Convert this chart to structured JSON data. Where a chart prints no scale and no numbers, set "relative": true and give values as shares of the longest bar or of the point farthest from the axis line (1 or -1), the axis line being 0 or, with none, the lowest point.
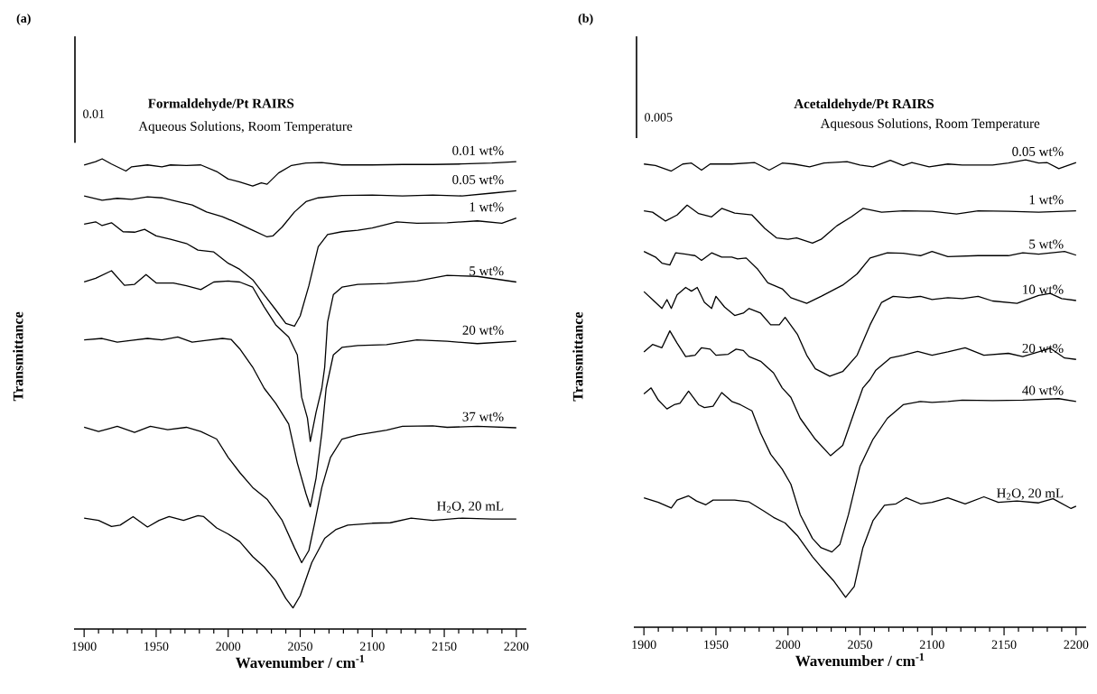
{
  "chart_data": [
    {
      "type": "line",
      "title": "Formaldehyde/Pt RAIRS",
      "subtitle": "Aqueous Solutions, Room Temperature",
      "xlabel": "**Wavenumber / cm$^{-1}$**",
      "ylabel": "Transmittance",
      "annotations": [
        "(a)",
        "0.01"
      ],
      "relative": true,
      "line_style": "solid",
      "xlim": [
        1893,
        2207
      ],
      "xticks": [
        1900,
        {
          "value": 1910,
          "label": null
        },
        {
          "value": 1920,
          "label": null
        },
        {
          "value": 1930,
          "label": null
        },
        {
          "value": 1940,
          "label": null
        },
        1950,
        {
          "value": 1960,
          "label": null
        },
        {
          "value": 1970,
          "label": null
        },
        {
          "value": 1980,
          "label": null
        },
        {
          "value": 1990,
          "label": null
        },
        2000,
        {
          "value": 2010,
          "label": null
        },
        {
          "value": 2020,
          "label": null
        },
        {
          "value": 2030,
          "label": null
        },
        {
          "value": 2040,
          "label": null
        },
        2050,
        {
          "value": 2060,
          "label": null
        },
        {
          "value": 2070,
          "label": null
        },
        {
          "value": 2080,
          "label": null
        },
        {
          "value": 2090,
          "label": null
        },
        2100,
        {
          "value": 2110,
          "label": null
        },
        {
          "value": 2120,
          "label": null
        },
        {
          "value": 2130,
          "label": null
        },
        {
          "value": 2140,
          "label": null
        },
        2150,
        {
          "value": 2160,
          "label": null
        },
        {
          "value": 2170,
          "label": null
        },
        {
          "value": 2180,
          "label": null
        },
        {
          "value": 2190,
          "label": null
        },
        2200
      ],
      "series": [
        {
          "name": "0.01 wt%",
          "color": "#000000",
          "x": [
            1900,
            1908,
            1912.5,
            1919,
            1929,
            1933,
            1944,
            1954,
            1960,
            1971,
            1981,
            1992,
            2000,
            2008,
            2017,
            2023,
            2027,
            2035,
            2044,
            2054,
            2065,
            2079,
            2100,
            2121,
            2142,
            2162,
            2183,
            2200
          ],
          "values": [
            0.987,
            0.994,
            1.0,
            0.989,
            0.974,
            0.983,
            0.987,
            0.983,
            0.987,
            0.986,
            0.987,
            0.973,
            0.957,
            0.951,
            0.942,
            0.949,
            0.946,
            0.97,
            0.986,
            0.991,
            0.992,
            0.987,
            0.987,
            0.988,
            0.988,
            0.989,
            0.991,
            0.994
          ]
        },
        {
          "name": "0.05 wt%",
          "color": "#000000",
          "x": [
            1900,
            1912.5,
            1923,
            1933,
            1944,
            1954,
            1965,
            1975,
            1985,
            1996,
            2006,
            2017,
            2027,
            2031,
            2037.5,
            2046,
            2054,
            2062.5,
            2079,
            2100,
            2121,
            2142,
            2162.5,
            2183,
            2200
          ],
          "values": [
            0.921,
            0.912,
            0.916,
            0.914,
            0.919,
            0.917,
            0.909,
            0.902,
            0.887,
            0.877,
            0.864,
            0.848,
            0.834,
            0.836,
            0.855,
            0.887,
            0.909,
            0.917,
            0.922,
            0.923,
            0.921,
            0.923,
            0.921,
            0.927,
            0.932
          ]
        },
        {
          "name": "1 wt%",
          "color": "#000000",
          "x": [
            1900,
            1908,
            1912.5,
            1919,
            1927,
            1935,
            1942,
            1950,
            1960,
            1971,
            1979,
            1990,
            2000,
            2008,
            2017,
            2025,
            2033,
            2040,
            2046,
            2050,
            2056,
            2062.5,
            2069,
            2079,
            2090,
            2100,
            2117,
            2131,
            2152,
            2173,
            2190,
            2200
          ],
          "values": [
            0.861,
            0.866,
            0.858,
            0.864,
            0.845,
            0.844,
            0.85,
            0.836,
            0.829,
            0.82,
            0.806,
            0.802,
            0.778,
            0.765,
            0.743,
            0.711,
            0.679,
            0.65,
            0.644,
            0.666,
            0.73,
            0.813,
            0.839,
            0.845,
            0.848,
            0.853,
            0.866,
            0.863,
            0.864,
            0.868,
            0.863,
            0.874
          ]
        },
        {
          "name": "5 wt%",
          "color": "#000000",
          "x": [
            1900,
            1908,
            1919,
            1928,
            1935,
            1943,
            1950,
            1962,
            1971,
            1981,
            1990,
            2000,
            2008,
            2017,
            2025,
            2033,
            2042,
            2048,
            2051,
            2055,
            2057,
            2061,
            2065,
            2067,
            2069,
            2073,
            2079,
            2090,
            2110,
            2131,
            2152,
            2173,
            2200
          ],
          "values": [
            0.738,
            0.746,
            0.762,
            0.731,
            0.733,
            0.754,
            0.736,
            0.736,
            0.73,
            0.722,
            0.738,
            0.74,
            0.738,
            0.727,
            0.685,
            0.647,
            0.621,
            0.583,
            0.493,
            0.449,
            0.399,
            0.461,
            0.512,
            0.557,
            0.653,
            0.711,
            0.727,
            0.733,
            0.735,
            0.74,
            0.752,
            0.75,
            0.738
          ]
        },
        {
          "name": "20 wt%",
          "color": "#000000",
          "x": [
            1900,
            1912.5,
            1923,
            1933,
            1944,
            1954,
            1965,
            1975,
            1985,
            1996,
            2002,
            2008,
            2017,
            2025,
            2033,
            2042,
            2048,
            2054,
            2057,
            2061,
            2065,
            2068,
            2073,
            2079,
            2090,
            2110,
            2131,
            2152,
            2173,
            2200
          ],
          "values": [
            0.615,
            0.618,
            0.61,
            0.614,
            0.618,
            0.615,
            0.621,
            0.61,
            0.614,
            0.618,
            0.616,
            0.596,
            0.557,
            0.512,
            0.48,
            0.436,
            0.353,
            0.288,
            0.26,
            0.321,
            0.417,
            0.512,
            0.583,
            0.599,
            0.603,
            0.605,
            0.615,
            0.612,
            0.607,
            0.612
          ]
        },
        {
          "name": "37 wt%",
          "color": "#000000",
          "x": [
            1900,
            1910,
            1917,
            1923,
            1935,
            1946,
            1958,
            1971,
            1981,
            1992,
            2000,
            2008,
            2017,
            2027,
            2037.5,
            2046,
            2051,
            2056,
            2060,
            2065,
            2071,
            2079,
            2090,
            2110,
            2121,
            2142,
            2152,
            2173,
            2200
          ],
          "values": [
            0.429,
            0.42,
            0.426,
            0.431,
            0.418,
            0.431,
            0.424,
            0.429,
            0.42,
            0.404,
            0.365,
            0.333,
            0.301,
            0.276,
            0.231,
            0.173,
            0.141,
            0.167,
            0.225,
            0.301,
            0.365,
            0.404,
            0.413,
            0.423,
            0.431,
            0.432,
            0.429,
            0.431,
            0.428
          ]
        },
        {
          "name": "H$_{2}$O, 20 mL",
          "color": "#000000",
          "x": [
            1900,
            1910,
            1919,
            1925,
            1934,
            1944,
            1952,
            1959,
            1969,
            1979,
            1983,
            1992,
            2000,
            2008,
            2017,
            2025,
            2033,
            2040,
            2045,
            2050,
            2058,
            2067,
            2075,
            2083,
            2100,
            2112.5,
            2127,
            2142,
            2162.5,
            2183,
            2200
          ],
          "values": [
            0.236,
            0.231,
            0.218,
            0.221,
            0.239,
            0.217,
            0.231,
            0.239,
            0.231,
            0.241,
            0.239,
            0.215,
            0.202,
            0.186,
            0.154,
            0.132,
            0.103,
            0.065,
            0.045,
            0.071,
            0.141,
            0.193,
            0.212,
            0.221,
            0.225,
            0.226,
            0.236,
            0.231,
            0.236,
            0.234,
            0.234
          ]
        }
      ]
    },
    {
      "type": "line",
      "title": "Acetaldehyde/Pt RAIRS",
      "subtitle": "Aquesous Solutions, Room Temperature",
      "xlabel": "**Wavenumber / cm$^{-1}$**",
      "ylabel": "Transmittance",
      "annotations": [
        "(b)",
        "0.005"
      ],
      "relative": true,
      "line_style": "solid",
      "xlim": [
        1893,
        2207
      ],
      "xticks": [
        1900,
        {
          "value": 1910,
          "label": null
        },
        {
          "value": 1920,
          "label": null
        },
        {
          "value": 1930,
          "label": null
        },
        {
          "value": 1940,
          "label": null
        },
        1950,
        {
          "value": 1960,
          "label": null
        },
        {
          "value": 1970,
          "label": null
        },
        {
          "value": 1980,
          "label": null
        },
        {
          "value": 1990,
          "label": null
        },
        2000,
        {
          "value": 2010,
          "label": null
        },
        {
          "value": 2020,
          "label": null
        },
        {
          "value": 2030,
          "label": null
        },
        {
          "value": 2040,
          "label": null
        },
        2050,
        {
          "value": 2060,
          "label": null
        },
        {
          "value": 2070,
          "label": null
        },
        {
          "value": 2080,
          "label": null
        },
        {
          "value": 2090,
          "label": null
        },
        2100,
        {
          "value": 2110,
          "label": null
        },
        {
          "value": 2120,
          "label": null
        },
        {
          "value": 2130,
          "label": null
        },
        {
          "value": 2140,
          "label": null
        },
        2150,
        {
          "value": 2160,
          "label": null
        },
        {
          "value": 2170,
          "label": null
        },
        {
          "value": 2180,
          "label": null
        },
        {
          "value": 2190,
          "label": null
        },
        2200
      ],
      "series": [
        {
          "name": "0.05 wt%",
          "color": "#000000",
          "x": [
            1900,
            1908,
            1919,
            1927,
            1933,
            1940,
            1946,
            1961,
            1977,
            1987,
            1996,
            2004,
            2015,
            2025,
            2041,
            2050,
            2059,
            2071,
            2080,
            2086,
            2098,
            2111,
            2121,
            2142,
            2153,
            2165,
            2174,
            2180,
            2188,
            2200
          ],
          "values": [
            0.991,
            0.988,
            0.976,
            0.991,
            0.993,
            0.978,
            0.991,
            0.991,
            0.994,
            0.978,
            0.993,
            0.991,
            0.985,
            0.993,
            0.996,
            0.989,
            0.985,
            0.999,
            0.988,
            0.994,
            0.985,
            0.991,
            0.989,
            0.989,
            0.993,
            1.0,
            0.993,
            0.994,
            0.981,
            0.994
          ]
        },
        {
          "name": "1 wt%",
          "color": "#000000",
          "x": [
            1900,
            1906,
            1915,
            1923,
            1930,
            1938,
            1947,
            1954,
            1963,
            1975,
            1984,
            1992,
            2000,
            2006,
            2017,
            2023,
            2034,
            2044,
            2052,
            2065,
            2080,
            2100,
            2117,
            2132,
            2153,
            2174,
            2200
          ],
          "values": [
            0.891,
            0.888,
            0.869,
            0.882,
            0.903,
            0.885,
            0.878,
            0.896,
            0.886,
            0.882,
            0.853,
            0.833,
            0.83,
            0.833,
            0.822,
            0.83,
            0.859,
            0.878,
            0.896,
            0.888,
            0.891,
            0.89,
            0.884,
            0.891,
            0.89,
            0.888,
            0.891
          ]
        },
        {
          "name": "5 wt%",
          "color": "#000000",
          "x": [
            1900,
            1908,
            1912.5,
            1918,
            1922,
            1929,
            1935.5,
            1940,
            1947,
            1954,
            1961,
            1965,
            1971,
            1979,
            1986,
            1996,
            2002,
            2013,
            2023,
            2038,
            2048,
            2057,
            2069,
            2080,
            2092,
            2100,
            2111,
            2132,
            2153,
            2163,
            2174,
            2192,
            2200
          ],
          "values": [
            0.804,
            0.792,
            0.779,
            0.775,
            0.801,
            0.798,
            0.795,
            0.785,
            0.801,
            0.792,
            0.792,
            0.788,
            0.79,
            0.766,
            0.737,
            0.724,
            0.705,
            0.693,
            0.708,
            0.732,
            0.756,
            0.79,
            0.801,
            0.8,
            0.795,
            0.804,
            0.793,
            0.795,
            0.795,
            0.801,
            0.798,
            0.804,
            0.796
          ]
        },
        {
          "name": "10 wt%",
          "color": "#000000",
          "x": [
            1900,
            1906,
            1912.5,
            1916,
            1919,
            1923,
            1929,
            1933,
            1937,
            1942,
            1947,
            1950,
            1956,
            1963,
            1969,
            1973,
            1981,
            1988,
            1994,
            1998,
            2006.5,
            2013,
            2019,
            2029,
            2038,
            2048,
            2057,
            2065,
            2073,
            2084,
            2092,
            2100,
            2111,
            2121,
            2132,
            2142,
            2159,
            2174,
            2182,
            2190,
            2200
          ],
          "values": [
            0.718,
            0.701,
            0.682,
            0.701,
            0.682,
            0.711,
            0.727,
            0.719,
            0.727,
            0.695,
            0.682,
            0.708,
            0.685,
            0.667,
            0.672,
            0.682,
            0.672,
            0.647,
            0.647,
            0.663,
            0.627,
            0.582,
            0.553,
            0.537,
            0.547,
            0.582,
            0.647,
            0.695,
            0.708,
            0.705,
            0.708,
            0.701,
            0.705,
            0.703,
            0.708,
            0.698,
            0.693,
            0.71,
            0.714,
            0.703,
            0.699
          ]
        },
        {
          "name": "20 wt%",
          "color": "#000000",
          "x": [
            1900,
            1906,
            1912.5,
            1918,
            1923,
            1929,
            1935.5,
            1940,
            1946,
            1950,
            1958.5,
            1964,
            1969,
            1973,
            1981,
            1990,
            1996,
            2002,
            2008.5,
            2019,
            2029.5,
            2038,
            2046,
            2052,
            2057,
            2061,
            2071,
            2080,
            2090,
            2100,
            2111,
            2123,
            2136,
            2153,
            2163,
            2174,
            2182,
            2192,
            2200
          ],
          "values": [
            0.589,
            0.605,
            0.598,
            0.634,
            0.608,
            0.579,
            0.582,
            0.598,
            0.595,
            0.582,
            0.584,
            0.595,
            0.592,
            0.579,
            0.569,
            0.544,
            0.512,
            0.492,
            0.447,
            0.402,
            0.367,
            0.389,
            0.46,
            0.512,
            0.53,
            0.55,
            0.576,
            0.582,
            0.59,
            0.582,
            0.589,
            0.598,
            0.582,
            0.586,
            0.579,
            0.589,
            0.597,
            0.576,
            0.573
          ]
        },
        {
          "name": "40 wt%",
          "color": "#000000",
          "x": [
            1900,
            1905,
            1910,
            1916,
            1921,
            1925,
            1931,
            1938,
            1942,
            1948,
            1954,
            1961,
            1967,
            1975,
            1981,
            1988,
            1996,
            2002,
            2008.5,
            2017,
            2023,
            2030.5,
            2036,
            2042,
            2050,
            2059,
            2069,
            2080,
            2092,
            2100,
            2111,
            2121,
            2142,
            2163,
            2188,
            2200
          ],
          "values": [
            0.499,
            0.512,
            0.486,
            0.467,
            0.476,
            0.479,
            0.505,
            0.476,
            0.47,
            0.473,
            0.502,
            0.483,
            0.476,
            0.463,
            0.415,
            0.37,
            0.338,
            0.306,
            0.241,
            0.19,
            0.17,
            0.161,
            0.177,
            0.241,
            0.344,
            0.402,
            0.447,
            0.476,
            0.483,
            0.481,
            0.483,
            0.486,
            0.485,
            0.486,
            0.489,
            0.483
          ]
        },
        {
          "name": "H$_{2}$O, 20 mL",
          "color": "#000000",
          "x": [
            1900,
            1910,
            1919,
            1923,
            1931,
            1936.5,
            1943,
            1948,
            1963,
            1973,
            1983.5,
            1990,
            1998,
            2006.5,
            2017,
            2023,
            2031.5,
            2040,
            2046,
            2052,
            2059,
            2067,
            2075,
            2082,
            2092,
            2100,
            2111,
            2123,
            2136,
            2146,
            2159,
            2174,
            2184,
            2196.5,
            2200
          ],
          "values": [
            0.277,
            0.267,
            0.255,
            0.272,
            0.281,
            0.27,
            0.262,
            0.272,
            0.272,
            0.268,
            0.248,
            0.235,
            0.223,
            0.196,
            0.151,
            0.129,
            0.1,
            0.064,
            0.087,
            0.17,
            0.228,
            0.261,
            0.264,
            0.277,
            0.264,
            0.267,
            0.277,
            0.264,
            0.279,
            0.267,
            0.27,
            0.266,
            0.275,
            0.254,
            0.259
          ]
        }
      ]
    }
  ]
}
